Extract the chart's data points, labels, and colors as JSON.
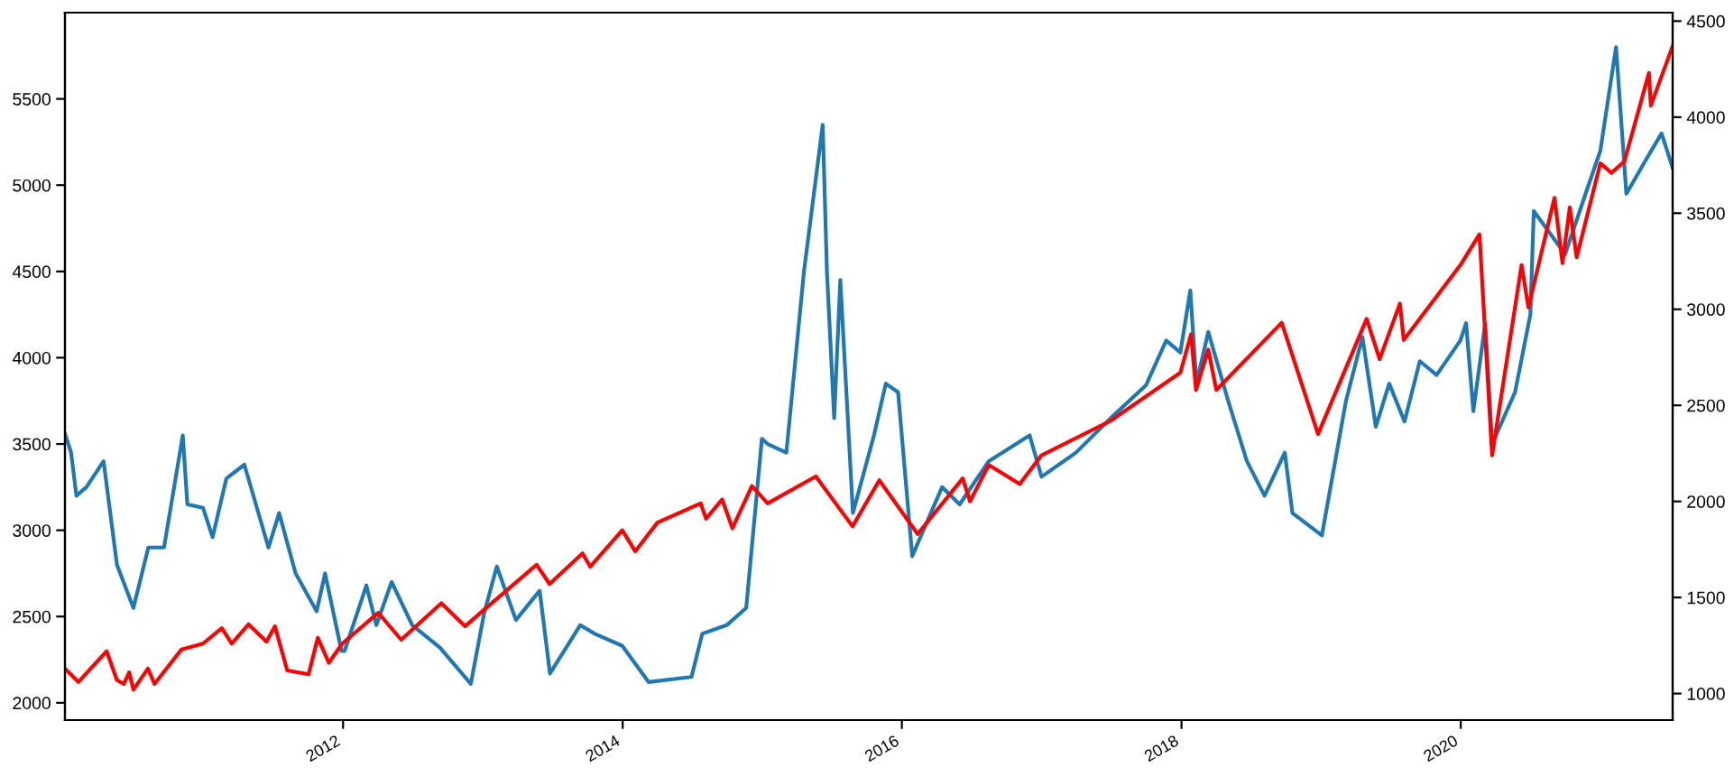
{
  "chart_data": {
    "type": "line",
    "xlim": [
      "2010-01-04",
      "2021-07-08"
    ],
    "xticks": [
      {
        "value": "2012-01-01",
        "label": "2012"
      },
      {
        "value": "2014-01-01",
        "label": "2014"
      },
      {
        "value": "2016-01-01",
        "label": "2016"
      },
      {
        "value": "2018-01-01",
        "label": "2018"
      },
      {
        "value": "2020-01-01",
        "label": "2020"
      }
    ],
    "ylim": [
      1900,
      6000
    ],
    "yticks": [
      2000,
      2500,
      3000,
      3500,
      4000,
      4500,
      5000,
      5500
    ],
    "y2lim": [
      862,
      4544
    ],
    "y2ticks": [
      1000,
      1500,
      2000,
      2500,
      3000,
      3500,
      4000,
      4500
    ],
    "series": [
      {
        "color": "#1f77b4",
        "x": [
          "2010-01-04",
          "2010-01-20",
          "2010-02-03",
          "2010-03-01",
          "2010-04-15",
          "2010-05-20",
          "2010-07-02",
          "2010-08-10",
          "2010-09-20",
          "2010-11-08",
          "2010-11-20",
          "2010-12-31",
          "2011-01-25",
          "2011-03-02",
          "2011-04-18",
          "2011-06-20",
          "2011-07-18",
          "2011-08-30",
          "2011-10-24",
          "2011-11-15",
          "2011-12-28",
          "2012-01-05",
          "2012-03-02",
          "2012-03-28",
          "2012-05-07",
          "2012-06-30",
          "2012-09-10",
          "2012-11-30",
          "2013-01-04",
          "2013-02-06",
          "2013-03-28",
          "2013-05-29",
          "2013-06-25",
          "2013-09-12",
          "2013-10-20",
          "2013-12-31",
          "2014-03-10",
          "2014-06-30",
          "2014-07-28",
          "2014-09-30",
          "2014-11-20",
          "2014-12-31",
          "2015-01-15",
          "2015-03-05",
          "2015-04-20",
          "2015-06-08",
          "2015-06-19",
          "2015-07-08",
          "2015-07-24",
          "2015-08-26",
          "2015-10-20",
          "2015-11-20",
          "2015-12-22",
          "2016-01-28",
          "2016-04-15",
          "2016-05-31",
          "2016-08-15",
          "2016-11-30",
          "2016-12-31",
          "2017-03-31",
          "2017-06-30",
          "2017-09-30",
          "2017-11-22",
          "2017-12-29",
          "2018-01-24",
          "2018-02-09",
          "2018-03-12",
          "2018-05-03",
          "2018-06-21",
          "2018-08-06",
          "2018-09-28",
          "2018-10-18",
          "2019-01-03",
          "2019-03-07",
          "2019-04-19",
          "2019-05-24",
          "2019-06-28",
          "2019-08-07",
          "2019-09-16",
          "2019-10-30",
          "2019-12-31",
          "2020-01-15",
          "2020-02-03",
          "2020-03-05",
          "2020-03-23",
          "2020-05-22",
          "2020-07-01",
          "2020-07-10",
          "2020-09-30",
          "2020-11-30",
          "2020-12-31",
          "2021-02-10",
          "2021-03-09",
          "2021-04-30",
          "2021-06-09",
          "2021-07-08"
        ],
        "values": [
          3560,
          3450,
          3200,
          3250,
          3400,
          2800,
          2550,
          2900,
          2900,
          3550,
          3150,
          3130,
          2960,
          3300,
          3380,
          2900,
          3100,
          2750,
          2530,
          2750,
          2300,
          2300,
          2680,
          2450,
          2700,
          2450,
          2320,
          2110,
          2520,
          2790,
          2480,
          2650,
          2170,
          2450,
          2400,
          2330,
          2120,
          2150,
          2400,
          2450,
          2550,
          3530,
          3500,
          3450,
          4500,
          5350,
          4500,
          3650,
          4450,
          3100,
          3550,
          3850,
          3800,
          2850,
          3250,
          3150,
          3400,
          3550,
          3310,
          3450,
          3650,
          3840,
          4100,
          4030,
          4390,
          3850,
          4150,
          3750,
          3400,
          3200,
          3450,
          3100,
          2970,
          3750,
          4120,
          3600,
          3850,
          3630,
          3980,
          3900,
          4100,
          4200,
          3690,
          4200,
          3500,
          3800,
          4250,
          4850,
          4600,
          5000,
          5200,
          5800,
          4950,
          5150,
          5300,
          5100
        ]
      },
      {
        "color": "#ff0000",
        "axis": "y2",
        "x": [
          "2010-01-04",
          "2010-02-08",
          "2010-04-23",
          "2010-05-20",
          "2010-06-07",
          "2010-06-21",
          "2010-07-02",
          "2010-08-09",
          "2010-08-26",
          "2010-11-05",
          "2010-12-31",
          "2011-02-18",
          "2011-03-16",
          "2011-04-29",
          "2011-06-15",
          "2011-07-07",
          "2011-08-08",
          "2011-10-03",
          "2011-10-27",
          "2011-11-25",
          "2011-12-30",
          "2012-04-02",
          "2012-06-01",
          "2012-09-14",
          "2012-11-15",
          "2012-12-31",
          "2013-05-21",
          "2013-06-24",
          "2013-09-18",
          "2013-10-08",
          "2013-12-31",
          "2014-02-03",
          "2014-04-02",
          "2014-07-24",
          "2014-08-07",
          "2014-09-18",
          "2014-10-15",
          "2014-12-05",
          "2015-01-15",
          "2015-05-21",
          "2015-08-25",
          "2015-11-03",
          "2016-02-11",
          "2016-06-08",
          "2016-06-27",
          "2016-08-15",
          "2016-11-04",
          "2016-12-31",
          "2017-06-30",
          "2017-12-29",
          "2018-01-26",
          "2018-02-08",
          "2018-03-12",
          "2018-04-02",
          "2018-09-20",
          "2018-12-24",
          "2019-04-30",
          "2019-06-03",
          "2019-07-26",
          "2019-08-05",
          "2019-12-31",
          "2020-02-19",
          "2020-03-23",
          "2020-06-08",
          "2020-06-26",
          "2020-09-02",
          "2020-09-23",
          "2020-10-12",
          "2020-10-30",
          "2020-12-31",
          "2021-01-29",
          "2021-03-04",
          "2021-05-07",
          "2021-05-12",
          "2021-07-08"
        ],
        "values": [
          1130,
          1060,
          1220,
          1070,
          1050,
          1110,
          1020,
          1130,
          1050,
          1230,
          1260,
          1340,
          1260,
          1360,
          1270,
          1350,
          1120,
          1100,
          1290,
          1160,
          1260,
          1420,
          1280,
          1470,
          1350,
          1430,
          1670,
          1570,
          1730,
          1660,
          1850,
          1740,
          1890,
          1990,
          1910,
          2010,
          1860,
          2080,
          1990,
          2130,
          1870,
          2110,
          1830,
          2120,
          2000,
          2190,
          2090,
          2240,
          2420,
          2670,
          2870,
          2580,
          2790,
          2580,
          2930,
          2350,
          2950,
          2740,
          3030,
          2840,
          3230,
          3390,
          2240,
          3230,
          3010,
          3580,
          3240,
          3530,
          3270,
          3760,
          3710,
          3770,
          4230,
          4060,
          4370
        ]
      }
    ]
  }
}
